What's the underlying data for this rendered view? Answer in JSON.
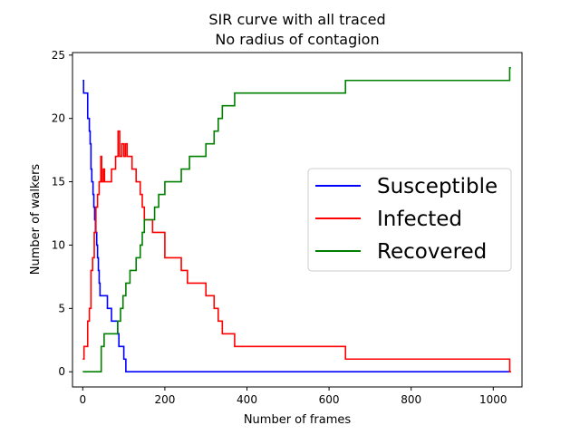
{
  "chart_data": {
    "type": "line",
    "title": "SIR curve with all traced",
    "subtitle": "No radius of contagion",
    "xlabel": "Number of frames",
    "ylabel": "Number of walkers",
    "xlim": [
      -25,
      1070
    ],
    "ylim": [
      -1.2,
      25.2
    ],
    "xticks": [
      0,
      200,
      400,
      600,
      800,
      1000
    ],
    "yticks": [
      0,
      5,
      10,
      15,
      20,
      25
    ],
    "grid": false,
    "legend_position": "center-right",
    "series": [
      {
        "name": "Susceptible",
        "color": "#0000ff",
        "x": [
          0,
          2,
          2,
          12,
          12,
          16,
          16,
          18,
          18,
          20,
          20,
          22,
          22,
          25,
          25,
          27,
          27,
          29,
          29,
          31,
          31,
          34,
          34,
          36,
          36,
          38,
          38,
          40,
          40,
          42,
          42,
          45,
          45,
          48,
          48,
          50,
          50,
          60,
          60,
          70,
          70,
          85,
          85,
          88,
          88,
          100,
          100,
          105,
          105,
          110,
          110,
          1043
        ],
        "y": [
          23,
          23,
          22,
          22,
          20,
          20,
          19,
          19,
          18,
          18,
          16,
          16,
          15,
          15,
          14,
          14,
          13,
          13,
          12,
          12,
          11,
          11,
          10,
          10,
          9,
          9,
          8,
          8,
          7,
          7,
          6,
          6,
          6,
          6,
          6,
          6,
          6,
          6,
          5,
          5,
          4,
          4,
          3,
          3,
          2,
          2,
          1,
          1,
          0,
          0,
          0,
          0
        ]
      },
      {
        "name": "Infected",
        "color": "#ff0000",
        "x": [
          0,
          3,
          3,
          12,
          12,
          16,
          16,
          20,
          20,
          24,
          24,
          28,
          28,
          32,
          32,
          36,
          36,
          40,
          40,
          44,
          44,
          46,
          46,
          50,
          50,
          53,
          53,
          58,
          58,
          62,
          62,
          66,
          66,
          70,
          70,
          80,
          80,
          86,
          86,
          90,
          90,
          95,
          95,
          100,
          100,
          104,
          104,
          108,
          108,
          114,
          114,
          120,
          120,
          130,
          130,
          140,
          140,
          145,
          145,
          150,
          150,
          155,
          155,
          160,
          160,
          170,
          170,
          200,
          200,
          240,
          240,
          255,
          255,
          300,
          300,
          320,
          320,
          330,
          330,
          340,
          340,
          370,
          370,
          640,
          640,
          1040,
          1040,
          1043
        ],
        "y": [
          1,
          1,
          2,
          2,
          4,
          4,
          5,
          5,
          8,
          8,
          9,
          9,
          11,
          11,
          13,
          13,
          14,
          14,
          15,
          15,
          17,
          17,
          15,
          15,
          16,
          16,
          15,
          15,
          15,
          15,
          15,
          15,
          15,
          15,
          16,
          16,
          17,
          17,
          19,
          19,
          17,
          17,
          18,
          18,
          17,
          17,
          18,
          18,
          17,
          17,
          17,
          17,
          16,
          16,
          15,
          15,
          14,
          14,
          13,
          13,
          12,
          12,
          12,
          12,
          12,
          12,
          11,
          11,
          9,
          9,
          8,
          8,
          7,
          7,
          6,
          6,
          5,
          5,
          4,
          4,
          3,
          3,
          2,
          2,
          1,
          1,
          0,
          0
        ]
      },
      {
        "name": "Recovered",
        "color": "#008000",
        "x": [
          0,
          45,
          45,
          48,
          48,
          52,
          52,
          85,
          85,
          92,
          92,
          98,
          98,
          105,
          105,
          115,
          115,
          130,
          130,
          140,
          140,
          145,
          145,
          150,
          150,
          155,
          155,
          160,
          160,
          165,
          165,
          175,
          175,
          185,
          185,
          200,
          200,
          210,
          210,
          240,
          240,
          260,
          260,
          300,
          300,
          320,
          320,
          330,
          330,
          340,
          340,
          370,
          370,
          640,
          640,
          1040,
          1040,
          1043
        ],
        "y": [
          0,
          0,
          2,
          2,
          2,
          2,
          3,
          3,
          4,
          4,
          5,
          5,
          6,
          6,
          7,
          7,
          8,
          8,
          9,
          9,
          10,
          10,
          11,
          11,
          12,
          12,
          12,
          12,
          12,
          12,
          12,
          12,
          13,
          13,
          14,
          14,
          15,
          15,
          15,
          15,
          16,
          16,
          17,
          17,
          18,
          18,
          19,
          19,
          20,
          20,
          21,
          21,
          22,
          22,
          23,
          23,
          24,
          24
        ]
      }
    ]
  }
}
